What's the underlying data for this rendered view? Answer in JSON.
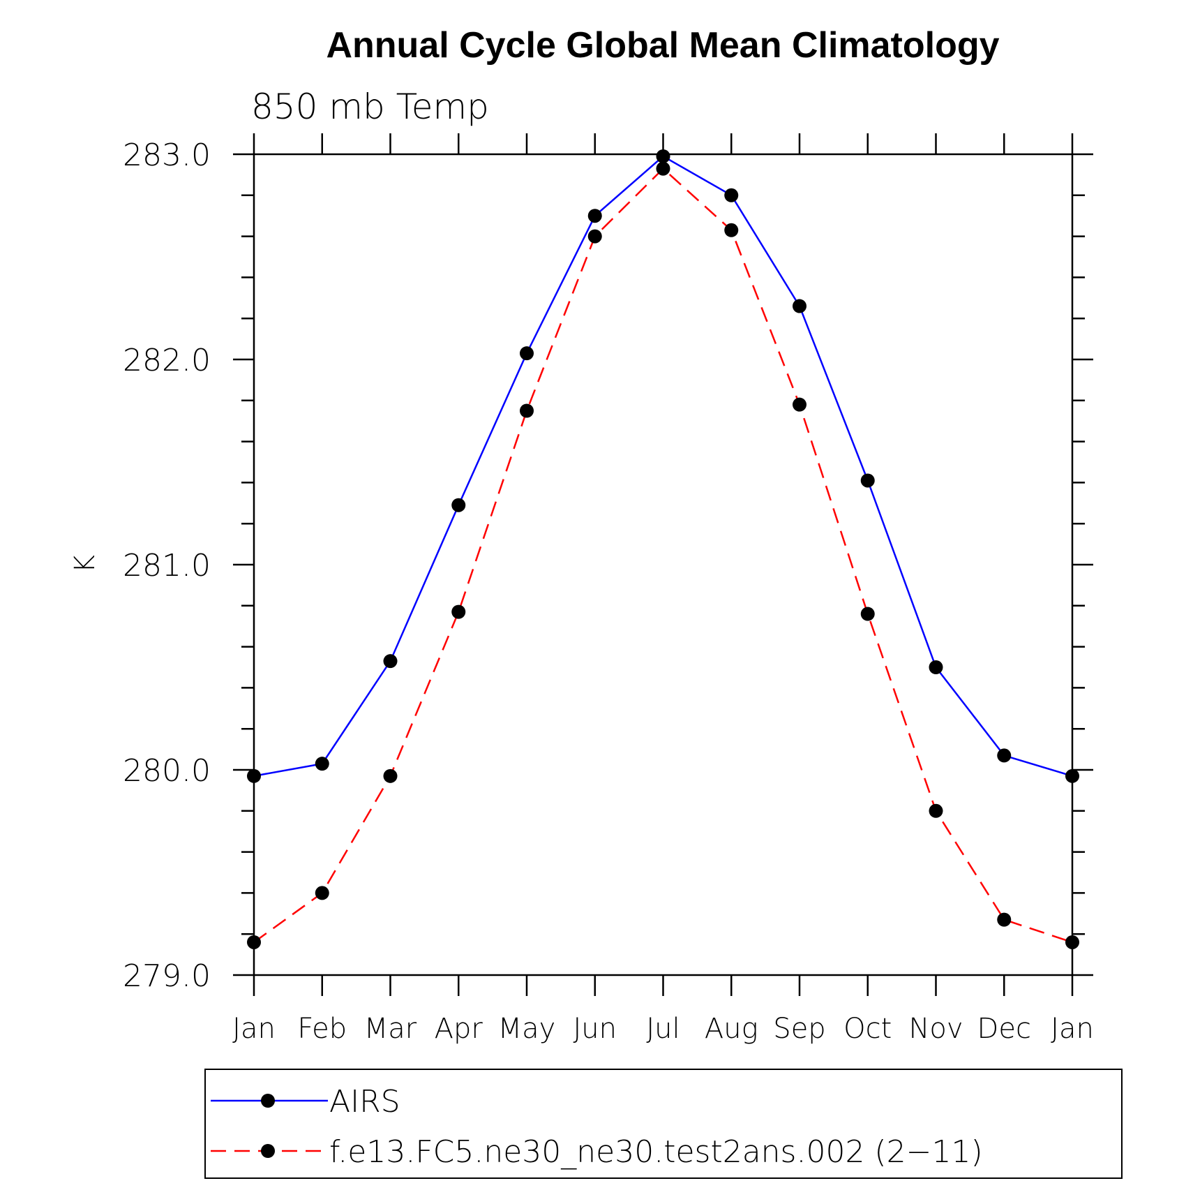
{
  "chart_data": {
    "type": "line",
    "title": "Annual Cycle Global Mean Climatology",
    "subtitle": "850 mb Temp",
    "ylabel": "K",
    "xlabel": "",
    "ylim": [
      279.0,
      283.0
    ],
    "yticks": [
      "283.0",
      "282.0",
      "281.0",
      "280.0",
      "279.0"
    ],
    "categories": [
      "Jan",
      "Feb",
      "Mar",
      "Apr",
      "May",
      "Jun",
      "Jul",
      "Aug",
      "Sep",
      "Oct",
      "Nov",
      "Dec",
      "Jan"
    ],
    "series": [
      {
        "name": "AIRS",
        "color": "#0000ff",
        "style": "solid",
        "values": [
          279.97,
          280.03,
          280.53,
          281.29,
          282.03,
          282.7,
          282.99,
          282.8,
          282.26,
          281.41,
          280.5,
          280.07,
          279.97
        ]
      },
      {
        "name": "f.e13.FC5.ne30_ne30.test2ans.002 (2−11)",
        "color": "#ff0000",
        "style": "dashed",
        "values": [
          279.16,
          279.4,
          279.97,
          280.77,
          281.75,
          282.6,
          282.93,
          282.63,
          281.78,
          280.76,
          279.8,
          279.27,
          279.16
        ]
      }
    ],
    "legend_position": "bottom"
  }
}
